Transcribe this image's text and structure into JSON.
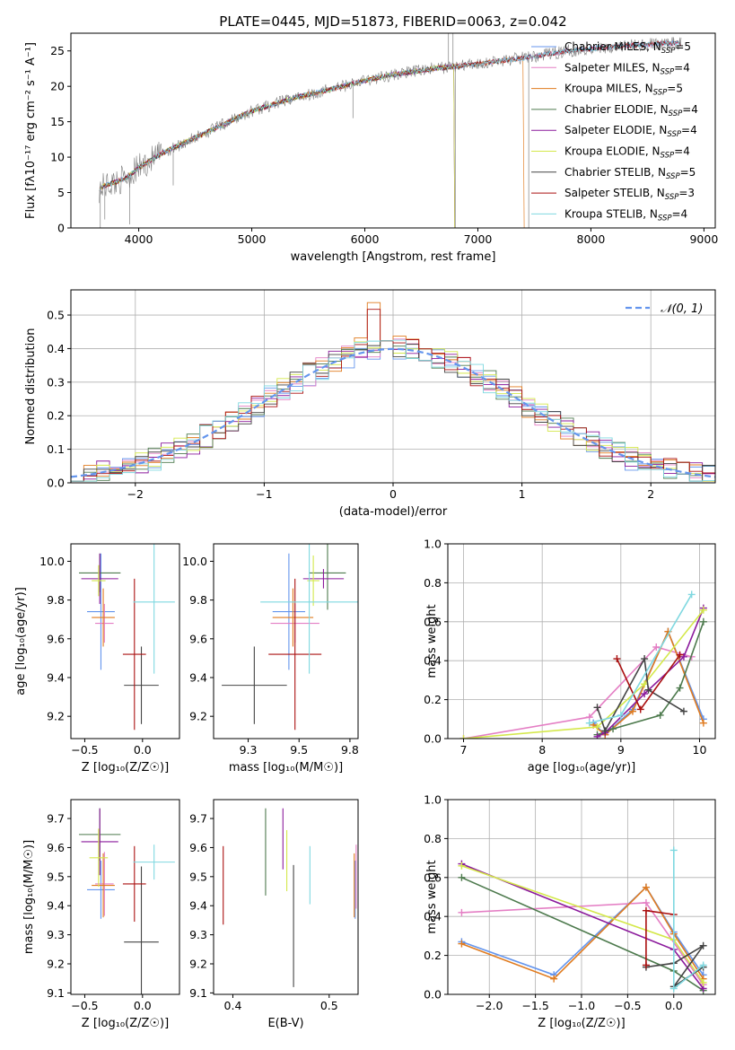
{
  "figure_title": "PLATE=0445, MJD=51873, FIBERID=0063, z=0.042",
  "colors": {
    "Chabrier MILES": "#6495ed",
    "Salpeter MILES": "#e47ec4",
    "Kroupa MILES": "#e07b1f",
    "Chabrier ELODIE": "#4d7a4d",
    "Salpeter ELODIE": "#8b1a9c",
    "Kroupa ELODIE": "#d4e84a",
    "Chabrier STELIB": "#444444",
    "Salpeter STELIB": "#aa1111",
    "Kroupa STELIB": "#7fd8e0"
  },
  "chart_data": [
    {
      "id": "spectrum",
      "type": "line",
      "title": "",
      "xlabel": "wavelength [Angstrom, rest frame]",
      "ylabel": "Flux [fλ10⁻¹⁷ erg cm⁻² s⁻¹ A⁻¹]",
      "xlim": [
        3400,
        9100
      ],
      "ylim": [
        0,
        27.5
      ],
      "xticks": [
        4000,
        5000,
        6000,
        7000,
        8000,
        9000
      ],
      "yticks": [
        0,
        5,
        10,
        15,
        20,
        25
      ],
      "legend_placement": "upper-right",
      "data_color": "#808080",
      "continuum": {
        "x": [
          3650,
          3700,
          3800,
          3900,
          4000,
          4200,
          4400,
          4600,
          4800,
          5000,
          5200,
          5400,
          5600,
          5800,
          6000,
          6200,
          6400,
          6600,
          6800,
          7000,
          7200,
          7400,
          7600,
          7800,
          8000,
          8200,
          8400,
          8600,
          8800
        ],
        "y": [
          5.5,
          6.0,
          6.5,
          7.2,
          8.5,
          10.5,
          12.0,
          13.5,
          15.0,
          16.5,
          17.5,
          18.5,
          19.2,
          20.0,
          20.8,
          21.5,
          22.0,
          22.5,
          22.8,
          23.2,
          23.6,
          24.0,
          24.5,
          25.0,
          25.3,
          25.6,
          25.8,
          26.0,
          26.1
        ]
      },
      "noise_amplitude": 0.9,
      "spikes": [
        {
          "x": 3660,
          "y": 0.0
        },
        {
          "x": 3700,
          "y": 1.2
        },
        {
          "x": 3920,
          "y": 0.5
        },
        {
          "x": 6800,
          "y": 0.0
        },
        {
          "x": 7450,
          "y": 0.0
        },
        {
          "x": 6740,
          "y": 27.5
        },
        {
          "x": 6780,
          "y": 27.5
        },
        {
          "x": 4305,
          "y": 6.0
        },
        {
          "x": 5895,
          "y": 15.5
        }
      ],
      "series": [
        {
          "name": "Chabrier MILES, N_SSP=5",
          "name_plain": "Chabrier MILES, N",
          "sub": "SSP",
          "suffix": "=5",
          "x_end": 8800,
          "drop_x": null
        },
        {
          "name": "Salpeter MILES, N_SSP=4",
          "name_plain": "Salpeter MILES, N",
          "sub": "SSP",
          "suffix": "=4",
          "x_end": 8800,
          "drop_x": null
        },
        {
          "name": "Kroupa MILES, N_SSP=5",
          "name_plain": "Kroupa MILES, N",
          "sub": "SSP",
          "suffix": "=5",
          "x_end": 7400,
          "drop_x": 7410
        },
        {
          "name": "Chabrier ELODIE, N_SSP=4",
          "name_plain": "Chabrier ELODIE, N",
          "sub": "SSP",
          "suffix": "=4",
          "x_end": 6790,
          "drop_x": 6795
        },
        {
          "name": "Salpeter ELODIE, N_SSP=4",
          "name_plain": "Salpeter ELODIE, N",
          "sub": "SSP",
          "suffix": "=4",
          "x_end": 6790,
          "drop_x": 6795
        },
        {
          "name": "Kroupa ELODIE, N_SSP=4",
          "name_plain": "Kroupa ELODIE, N",
          "sub": "SSP",
          "suffix": "=4",
          "x_end": 6790,
          "drop_x": 6795
        },
        {
          "name": "Chabrier STELIB, N_SSP=5",
          "name_plain": "Chabrier STELIB, N",
          "sub": "SSP",
          "suffix": "=5",
          "x_end": 8800,
          "drop_x": null
        },
        {
          "name": "Salpeter STELIB, N_SSP=3",
          "name_plain": "Salpeter STELIB, N",
          "sub": "SSP",
          "suffix": "=3",
          "x_end": 8800,
          "drop_x": null
        },
        {
          "name": "Kroupa STELIB, N_SSP=4",
          "name_plain": "Kroupa STELIB, N",
          "sub": "SSP",
          "suffix": "=4",
          "x_end": 8800,
          "drop_x": null
        }
      ]
    },
    {
      "id": "residual-hist",
      "type": "histogram",
      "title": "",
      "xlabel": "(data-model)/error",
      "ylabel": "Normed distribution",
      "xlim": [
        -2.5,
        2.5
      ],
      "ylim": [
        0,
        0.575
      ],
      "xticks": [
        -2,
        -1,
        0,
        1,
        2
      ],
      "yticks": [
        0.0,
        0.1,
        0.2,
        0.3,
        0.4,
        0.5
      ],
      "grid": true,
      "bin_width": 0.1,
      "bin_start": -2.5,
      "normal_curve_label": "𝒩(0, 1)",
      "normal_curve_color": "#6495ed",
      "jitter": 0.035,
      "spike_bins": [
        {
          "x": -0.15,
          "y": 0.545
        },
        {
          "x": -0.25,
          "y": 0.44
        },
        {
          "x": 0.05,
          "y": 0.445
        }
      ]
    },
    {
      "id": "age-vs-z",
      "type": "errorbar",
      "xlabel": "Z [log₁₀(Z/Z☉)]",
      "ylabel": "age  [log₁₀(age/yr)]",
      "xlim": [
        -0.62,
        0.32
      ],
      "ylim": [
        9.085,
        10.09
      ],
      "xticks": [
        -0.5,
        0.0
      ],
      "yticks": [
        9.2,
        9.4,
        9.6,
        9.8,
        10.0
      ],
      "points": [
        {
          "s": "Chabrier MILES",
          "x": -0.36,
          "xerr": 0.12,
          "y": 9.74,
          "yerr": 0.3
        },
        {
          "s": "Salpeter MILES",
          "x": -0.33,
          "xerr": 0.08,
          "y": 9.68,
          "yerr": 0.1
        },
        {
          "s": "Kroupa MILES",
          "x": -0.34,
          "xerr": 0.1,
          "y": 9.71,
          "yerr": 0.15
        },
        {
          "s": "Chabrier ELODIE",
          "x": -0.37,
          "xerr": 0.18,
          "y": 9.94,
          "yerr": 0.1
        },
        {
          "s": "Salpeter ELODIE",
          "x": -0.37,
          "xerr": 0.16,
          "y": 9.91,
          "yerr": 0.13
        },
        {
          "s": "Kroupa ELODIE",
          "x": -0.38,
          "xerr": 0.06,
          "y": 9.9,
          "yerr": 0.08
        },
        {
          "s": "Chabrier STELIB",
          "x": -0.01,
          "xerr": 0.15,
          "y": 9.36,
          "yerr": 0.2
        },
        {
          "s": "Salpeter STELIB",
          "x": -0.07,
          "xerr": 0.1,
          "y": 9.52,
          "yerr": 0.39
        },
        {
          "s": "Kroupa STELIB",
          "x": 0.1,
          "xerr": 0.18,
          "y": 9.79,
          "yerr": 0.37
        }
      ]
    },
    {
      "id": "age-vs-mass",
      "type": "errorbar",
      "xlabel": "mass [log₁₀(M/M☉)]",
      "ylabel": "",
      "xlim": [
        9.08,
        9.79
      ],
      "ylim": [
        9.085,
        10.09
      ],
      "xticks": [
        9.25,
        9.5,
        9.75
      ],
      "yticks": [
        9.2,
        9.4,
        9.6,
        9.8,
        10.0
      ],
      "points": [
        {
          "s": "Chabrier MILES",
          "x": 9.45,
          "xerr": 0.08,
          "y": 9.74,
          "yerr": 0.3
        },
        {
          "s": "Salpeter MILES",
          "x": 9.48,
          "xerr": 0.12,
          "y": 9.68,
          "yerr": 0.1
        },
        {
          "s": "Kroupa MILES",
          "x": 9.47,
          "xerr": 0.1,
          "y": 9.71,
          "yerr": 0.15
        },
        {
          "s": "Chabrier ELODIE",
          "x": 9.64,
          "xerr": 0.09,
          "y": 9.94,
          "yerr": 0.19
        },
        {
          "s": "Salpeter ELODIE",
          "x": 9.62,
          "xerr": 0.1,
          "y": 9.91,
          "yerr": 0.05
        },
        {
          "s": "Kroupa ELODIE",
          "x": 9.57,
          "xerr": 0.03,
          "y": 9.9,
          "yerr": 0.13
        },
        {
          "s": "Chabrier STELIB",
          "x": 9.28,
          "xerr": 0.16,
          "y": 9.36,
          "yerr": 0.2
        },
        {
          "s": "Salpeter STELIB",
          "x": 9.48,
          "xerr": 0.13,
          "y": 9.52,
          "yerr": 0.39
        },
        {
          "s": "Kroupa STELIB",
          "x": 9.55,
          "xerr": 0.24,
          "y": 9.79,
          "yerr": 0.37
        }
      ]
    },
    {
      "id": "weight-vs-age",
      "type": "line",
      "xlabel": "age  [log₁₀(age/yr)]",
      "ylabel": "mass weight",
      "xlim": [
        6.8,
        10.2
      ],
      "ylim": [
        0,
        1.0
      ],
      "xticks": [
        7,
        8,
        9,
        10
      ],
      "yticks": [
        0.0,
        0.2,
        0.4,
        0.6,
        0.8,
        1.0
      ],
      "grid": true,
      "series": [
        {
          "s": "Chabrier MILES",
          "x": [
            8.65,
            8.8,
            9.15,
            9.6,
            10.05
          ],
          "y": [
            0.08,
            0.02,
            0.15,
            0.55,
            0.1
          ]
        },
        {
          "s": "Salpeter MILES",
          "x": [
            7.0,
            8.6,
            9.45,
            9.9
          ],
          "y": [
            0.0,
            0.11,
            0.47,
            0.42
          ]
        },
        {
          "s": "Kroupa MILES",
          "x": [
            8.65,
            8.8,
            9.15,
            9.6,
            10.05
          ],
          "y": [
            0.07,
            0.02,
            0.14,
            0.55,
            0.08
          ]
        },
        {
          "s": "Chabrier ELODIE",
          "x": [
            8.7,
            8.9,
            9.5,
            9.75,
            10.05
          ],
          "y": [
            0.02,
            0.05,
            0.12,
            0.26,
            0.6
          ]
        },
        {
          "s": "Salpeter ELODIE",
          "x": [
            8.7,
            8.8,
            9.3,
            9.8,
            10.05
          ],
          "y": [
            0.01,
            0.03,
            0.23,
            0.42,
            0.67
          ]
        },
        {
          "s": "Kroupa ELODIE",
          "x": [
            7.0,
            8.7,
            9.3,
            10.05
          ],
          "y": [
            0.0,
            0.06,
            0.28,
            0.66
          ]
        },
        {
          "s": "Chabrier STELIB",
          "x": [
            8.7,
            8.8,
            9.3,
            9.35,
            9.8
          ],
          "y": [
            0.16,
            0.04,
            0.41,
            0.25,
            0.14
          ]
        },
        {
          "s": "Salpeter STELIB",
          "x": [
            8.95,
            9.25,
            9.75
          ],
          "y": [
            0.41,
            0.15,
            0.43
          ]
        },
        {
          "s": "Kroupa STELIB",
          "x": [
            8.6,
            9.0,
            9.9
          ],
          "y": [
            0.08,
            0.12,
            0.74
          ]
        }
      ]
    },
    {
      "id": "mass-vs-z",
      "type": "errorbar",
      "xlabel": "Z [log₁₀(Z/Z☉)]",
      "ylabel": "mass [log₁₀(M/M☉)]",
      "xlim": [
        -0.62,
        0.32
      ],
      "ylim": [
        9.095,
        9.765
      ],
      "xticks": [
        -0.5,
        0.0
      ],
      "yticks": [
        9.1,
        9.2,
        9.3,
        9.4,
        9.5,
        9.6,
        9.7
      ],
      "points": [
        {
          "s": "Chabrier MILES",
          "x": -0.36,
          "xerr": 0.12,
          "y": 9.455,
          "yerr": 0.1
        },
        {
          "s": "Salpeter MILES",
          "x": -0.33,
          "xerr": 0.08,
          "y": 9.475,
          "yerr": 0.11
        },
        {
          "s": "Kroupa MILES",
          "x": -0.34,
          "xerr": 0.1,
          "y": 9.47,
          "yerr": 0.11
        },
        {
          "s": "Chabrier ELODIE",
          "x": -0.37,
          "xerr": 0.18,
          "y": 9.645,
          "yerr": 0.09
        },
        {
          "s": "Salpeter ELODIE",
          "x": -0.37,
          "xerr": 0.16,
          "y": 9.62,
          "yerr": 0.115
        },
        {
          "s": "Kroupa ELODIE",
          "x": -0.38,
          "xerr": 0.08,
          "y": 9.565,
          "yerr": 0.1
        },
        {
          "s": "Chabrier STELIB",
          "x": -0.01,
          "xerr": 0.15,
          "y": 9.275,
          "yerr": 0.26
        },
        {
          "s": "Salpeter STELIB",
          "x": -0.07,
          "xerr": 0.1,
          "y": 9.475,
          "yerr": 0.13
        },
        {
          "s": "Kroupa STELIB",
          "x": 0.1,
          "xerr": 0.18,
          "y": 9.55,
          "yerr": 0.06
        }
      ]
    },
    {
      "id": "mass-vs-ebv",
      "type": "errorbar",
      "xlabel": "E(B-V)",
      "ylabel": "",
      "xlim": [
        0.38,
        0.53
      ],
      "ylim": [
        9.095,
        9.765
      ],
      "xticks": [
        0.4,
        0.5
      ],
      "yticks": [
        9.1,
        9.2,
        9.3,
        9.4,
        9.5,
        9.6,
        9.7
      ],
      "points": [
        {
          "s": "Chabrier MILES",
          "x": 0.527,
          "xerr": 0,
          "y": 9.455,
          "yerr": 0.1
        },
        {
          "s": "Salpeter MILES",
          "x": 0.528,
          "xerr": 0,
          "y": 9.5,
          "yerr": 0.11
        },
        {
          "s": "Kroupa MILES",
          "x": 0.526,
          "xerr": 0,
          "y": 9.47,
          "yerr": 0.11
        },
        {
          "s": "Chabrier ELODIE",
          "x": 0.434,
          "xerr": 0,
          "y": 9.585,
          "yerr": 0.15
        },
        {
          "s": "Salpeter ELODIE",
          "x": 0.452,
          "xerr": 0,
          "y": 9.63,
          "yerr": 0.105
        },
        {
          "s": "Kroupa ELODIE",
          "x": 0.456,
          "xerr": 0,
          "y": 9.555,
          "yerr": 0.105
        },
        {
          "s": "Chabrier STELIB",
          "x": 0.463,
          "xerr": 0,
          "y": 9.33,
          "yerr": 0.21
        },
        {
          "s": "Salpeter STELIB",
          "x": 0.39,
          "xerr": 0,
          "y": 9.47,
          "yerr": 0.135
        },
        {
          "s": "Kroupa STELIB",
          "x": 0.48,
          "xerr": 0,
          "y": 9.505,
          "yerr": 0.1
        }
      ]
    },
    {
      "id": "weight-vs-z",
      "type": "line",
      "xlabel": "Z [log₁₀(Z/Z☉)]",
      "ylabel": "mass weight",
      "xlim": [
        -2.45,
        0.45
      ],
      "ylim": [
        0,
        1.0
      ],
      "xticks": [
        -2.0,
        -1.5,
        -1.0,
        -0.5,
        0.0
      ],
      "yticks": [
        0.0,
        0.2,
        0.4,
        0.6,
        0.8,
        1.0
      ],
      "grid": true,
      "series": [
        {
          "s": "Chabrier MILES",
          "x": [
            -2.3,
            -1.3,
            -0.3,
            0.0,
            0.32
          ],
          "y": [
            0.27,
            0.1,
            0.55,
            0.32,
            0.1
          ]
        },
        {
          "s": "Salpeter MILES",
          "x": [
            -2.3,
            -0.3,
            0.32
          ],
          "y": [
            0.42,
            0.47,
            0.05
          ]
        },
        {
          "s": "Kroupa MILES",
          "x": [
            -2.3,
            -1.3,
            -0.3,
            0.0,
            0.32
          ],
          "y": [
            0.26,
            0.08,
            0.55,
            0.31,
            0.08
          ]
        },
        {
          "s": "Chabrier ELODIE",
          "x": [
            -2.3,
            0.0,
            0.32
          ],
          "y": [
            0.6,
            0.12,
            0.02
          ]
        },
        {
          "s": "Salpeter ELODIE",
          "x": [
            -2.3,
            0.0,
            0.32
          ],
          "y": [
            0.67,
            0.23,
            0.03
          ]
        },
        {
          "s": "Kroupa ELODIE",
          "x": [
            -2.3,
            0.0,
            0.32
          ],
          "y": [
            0.66,
            0.28,
            0.06
          ]
        },
        {
          "s": "Chabrier STELIB",
          "x": [
            -0.3,
            0.0,
            0.32,
            0.0,
            0.32
          ],
          "y": [
            0.14,
            0.16,
            0.25,
            0.04,
            0.14
          ]
        },
        {
          "s": "Salpeter STELIB",
          "x": [
            -0.3,
            -0.3,
            0.0
          ],
          "y": [
            0.15,
            0.43,
            0.41
          ]
        },
        {
          "s": "Kroupa STELIB",
          "x": [
            0.0,
            0.0,
            0.32
          ],
          "y": [
            0.74,
            0.03,
            0.15
          ]
        }
      ]
    }
  ]
}
